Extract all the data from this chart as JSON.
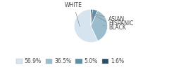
{
  "labels": [
    "WHITE",
    "HISPANIC",
    "ASIAN",
    "BLACK"
  ],
  "values": [
    56.9,
    36.5,
    5.0,
    1.6
  ],
  "colors": [
    "#d6e4f0",
    "#9bbccc",
    "#5d8fa3",
    "#2c4f63"
  ],
  "legend_labels": [
    "56.9%",
    "36.5%",
    "5.0%",
    "1.6%"
  ],
  "startangle": 90,
  "bg_color": "#ffffff"
}
